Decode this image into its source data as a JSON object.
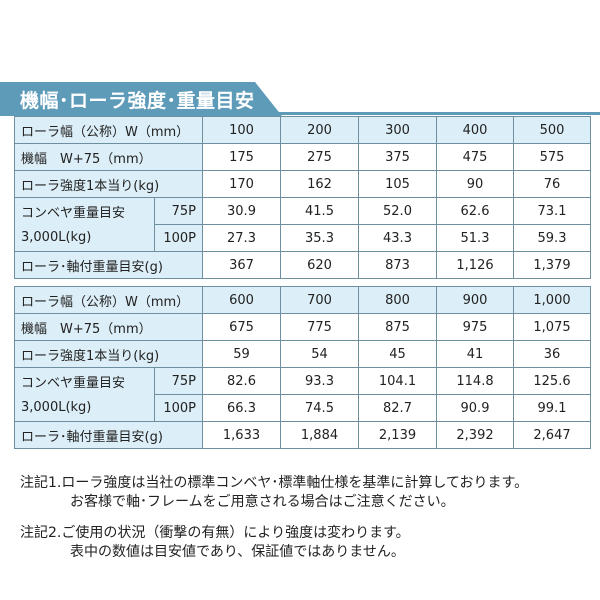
{
  "title": "機幅･ローラ強度･重量目安",
  "tables": [
    {
      "header_label": "ローラ幅（公称）W（mm）",
      "widths": [
        "100",
        "200",
        "300",
        "400",
        "500"
      ],
      "machine_label": "機幅　W+75（mm）",
      "machine": [
        "175",
        "275",
        "375",
        "475",
        "575"
      ],
      "strength_label": "ローラ強度1本当り(kg)",
      "strength": [
        "170",
        "162",
        "105",
        "90",
        "76"
      ],
      "conveyor_label_1": "コンベヤ重量目安",
      "conveyor_label_2": "3,000L(kg)",
      "p75_label": "75P",
      "p75": [
        "30.9",
        "41.5",
        "52.0",
        "62.6",
        "73.1"
      ],
      "p100_label": "100P",
      "p100": [
        "27.3",
        "35.3",
        "43.3",
        "51.3",
        "59.3"
      ],
      "roller_label": "ローラ･軸付重量目安(g)",
      "roller": [
        "367",
        "620",
        "873",
        "1,126",
        "1,379"
      ]
    },
    {
      "header_label": "ローラ幅（公称）W（mm）",
      "widths": [
        "600",
        "700",
        "800",
        "900",
        "1,000"
      ],
      "machine_label": "機幅　W+75（mm）",
      "machine": [
        "675",
        "775",
        "875",
        "975",
        "1,075"
      ],
      "strength_label": "ローラ強度1本当り(kg)",
      "strength": [
        "59",
        "54",
        "45",
        "41",
        "36"
      ],
      "conveyor_label_1": "コンベヤ重量目安",
      "conveyor_label_2": "3,000L(kg)",
      "p75_label": "75P",
      "p75": [
        "82.6",
        "93.3",
        "104.1",
        "114.8",
        "125.6"
      ],
      "p100_label": "100P",
      "p100": [
        "66.3",
        "74.5",
        "82.7",
        "90.9",
        "99.1"
      ],
      "roller_label": "ローラ･軸付重量目安(g)",
      "roller": [
        "1,633",
        "1,884",
        "2,139",
        "2,392",
        "2,647"
      ]
    }
  ],
  "notes": [
    {
      "line1": "注記1.ローラ強度は当社の標準コンベヤ･標準軸仕様を基準に計算しております。",
      "line2": "お客様で軸･フレームをご用意される場合はご注意ください。"
    },
    {
      "line1": "注記2.ご使用の状況（衝撃の有無）により強度は変わります。",
      "line2": "表中の数値は目安値であり、保証値ではありません。"
    }
  ]
}
